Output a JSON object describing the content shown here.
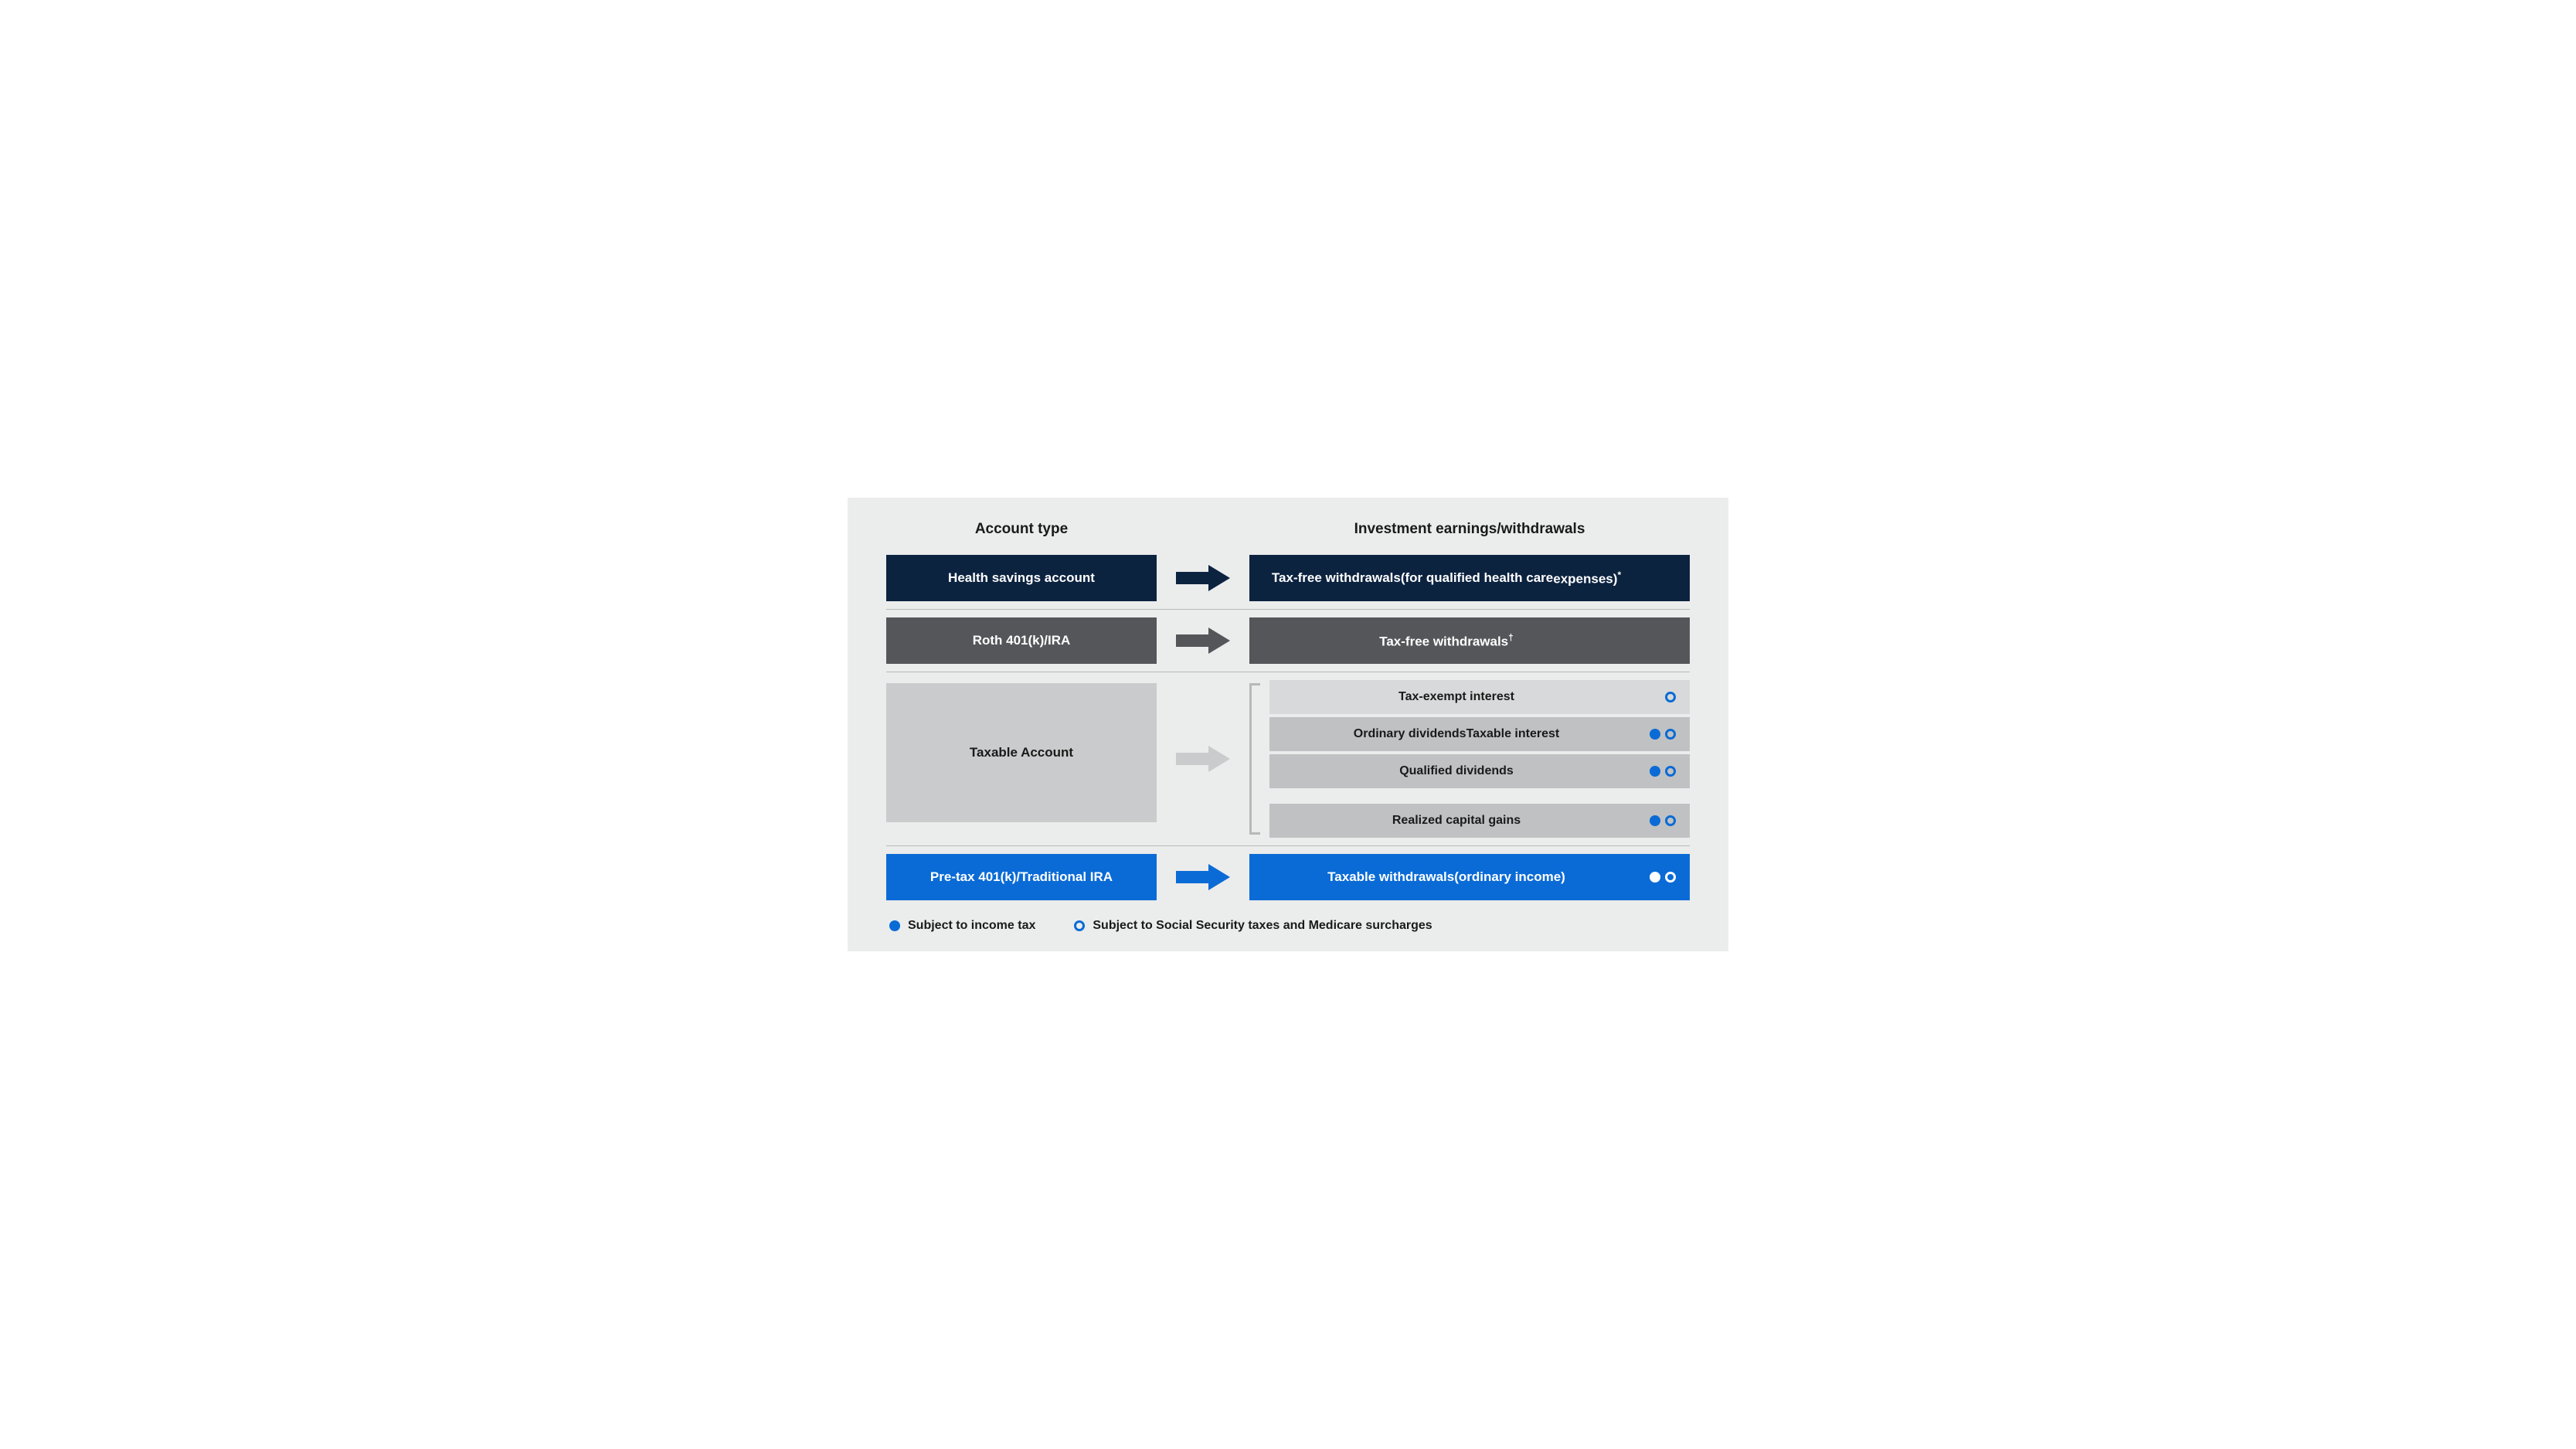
{
  "colors": {
    "page_bg": "#ffffff",
    "canvas_bg": "#ebecec",
    "divider": "#b8b8b8",
    "text_dark": "#1a1a1a",
    "navy": "#0c2340",
    "gray_dark": "#55565a",
    "gray_mid": "#cacbcc",
    "gray_sub_light": "#d8d9da",
    "gray_sub_mid": "#c0c1c3",
    "blue": "#0a6bd6",
    "marker_blue": "#0a6bd6",
    "white": "#ffffff"
  },
  "headers": {
    "left": "Account type",
    "right": "Investment earnings/withdrawals"
  },
  "rows": [
    {
      "id": "hsa",
      "account_label": "Health savings account",
      "box_color": "#0c2340",
      "text_color": "#ffffff",
      "arrow_color": "#0c2340",
      "outcome": {
        "lines": [
          "Tax-free withdrawals",
          "(for qualified health care",
          "expenses)*"
        ],
        "box_color": "#0c2340",
        "text_color": "#ffffff",
        "markers": []
      }
    },
    {
      "id": "roth",
      "account_label": "Roth 401(k)/IRA",
      "box_color": "#55565a",
      "text_color": "#ffffff",
      "arrow_color": "#55565a",
      "outcome": {
        "lines": [
          "Tax-free withdrawals†"
        ],
        "box_color": "#55565a",
        "text_color": "#ffffff",
        "markers": []
      }
    },
    {
      "id": "taxable",
      "account_label": "Taxable Account",
      "box_color": "#cacbcc",
      "text_color": "#1a1a1a",
      "arrow_color": "#cacbcc",
      "sub_outcomes": [
        {
          "lines": [
            "Tax-exempt interest"
          ],
          "box_color": "#d8d9da",
          "markers": [
            "ring"
          ]
        },
        {
          "lines": [
            "Ordinary dividends",
            "Taxable interest"
          ],
          "box_color": "#c0c1c3",
          "markers": [
            "filled",
            "ring"
          ]
        },
        {
          "lines": [
            "Qualified dividends"
          ],
          "box_color": "#c0c1c3",
          "markers": [
            "filled",
            "ring"
          ]
        },
        {
          "gap": true
        },
        {
          "lines": [
            "Realized capital gains"
          ],
          "box_color": "#c0c1c3",
          "markers": [
            "filled",
            "ring"
          ]
        }
      ],
      "marker_color": "#0a6bd6"
    },
    {
      "id": "pretax",
      "account_label": "Pre-tax 401(k)/Traditional IRA",
      "box_color": "#0a6bd6",
      "text_color": "#ffffff",
      "arrow_color": "#0a6bd6",
      "outcome": {
        "lines": [
          "Taxable withdrawals",
          "(ordinary income)"
        ],
        "box_color": "#0a6bd6",
        "text_color": "#ffffff",
        "markers": [
          "filled",
          "ring"
        ],
        "marker_color": "#ffffff"
      }
    }
  ],
  "legend": {
    "filled": {
      "label": "Subject to income tax",
      "color": "#0a6bd6"
    },
    "ring": {
      "label": "Subject to Social Security taxes and Medicare surcharges",
      "color": "#0a6bd6"
    }
  }
}
